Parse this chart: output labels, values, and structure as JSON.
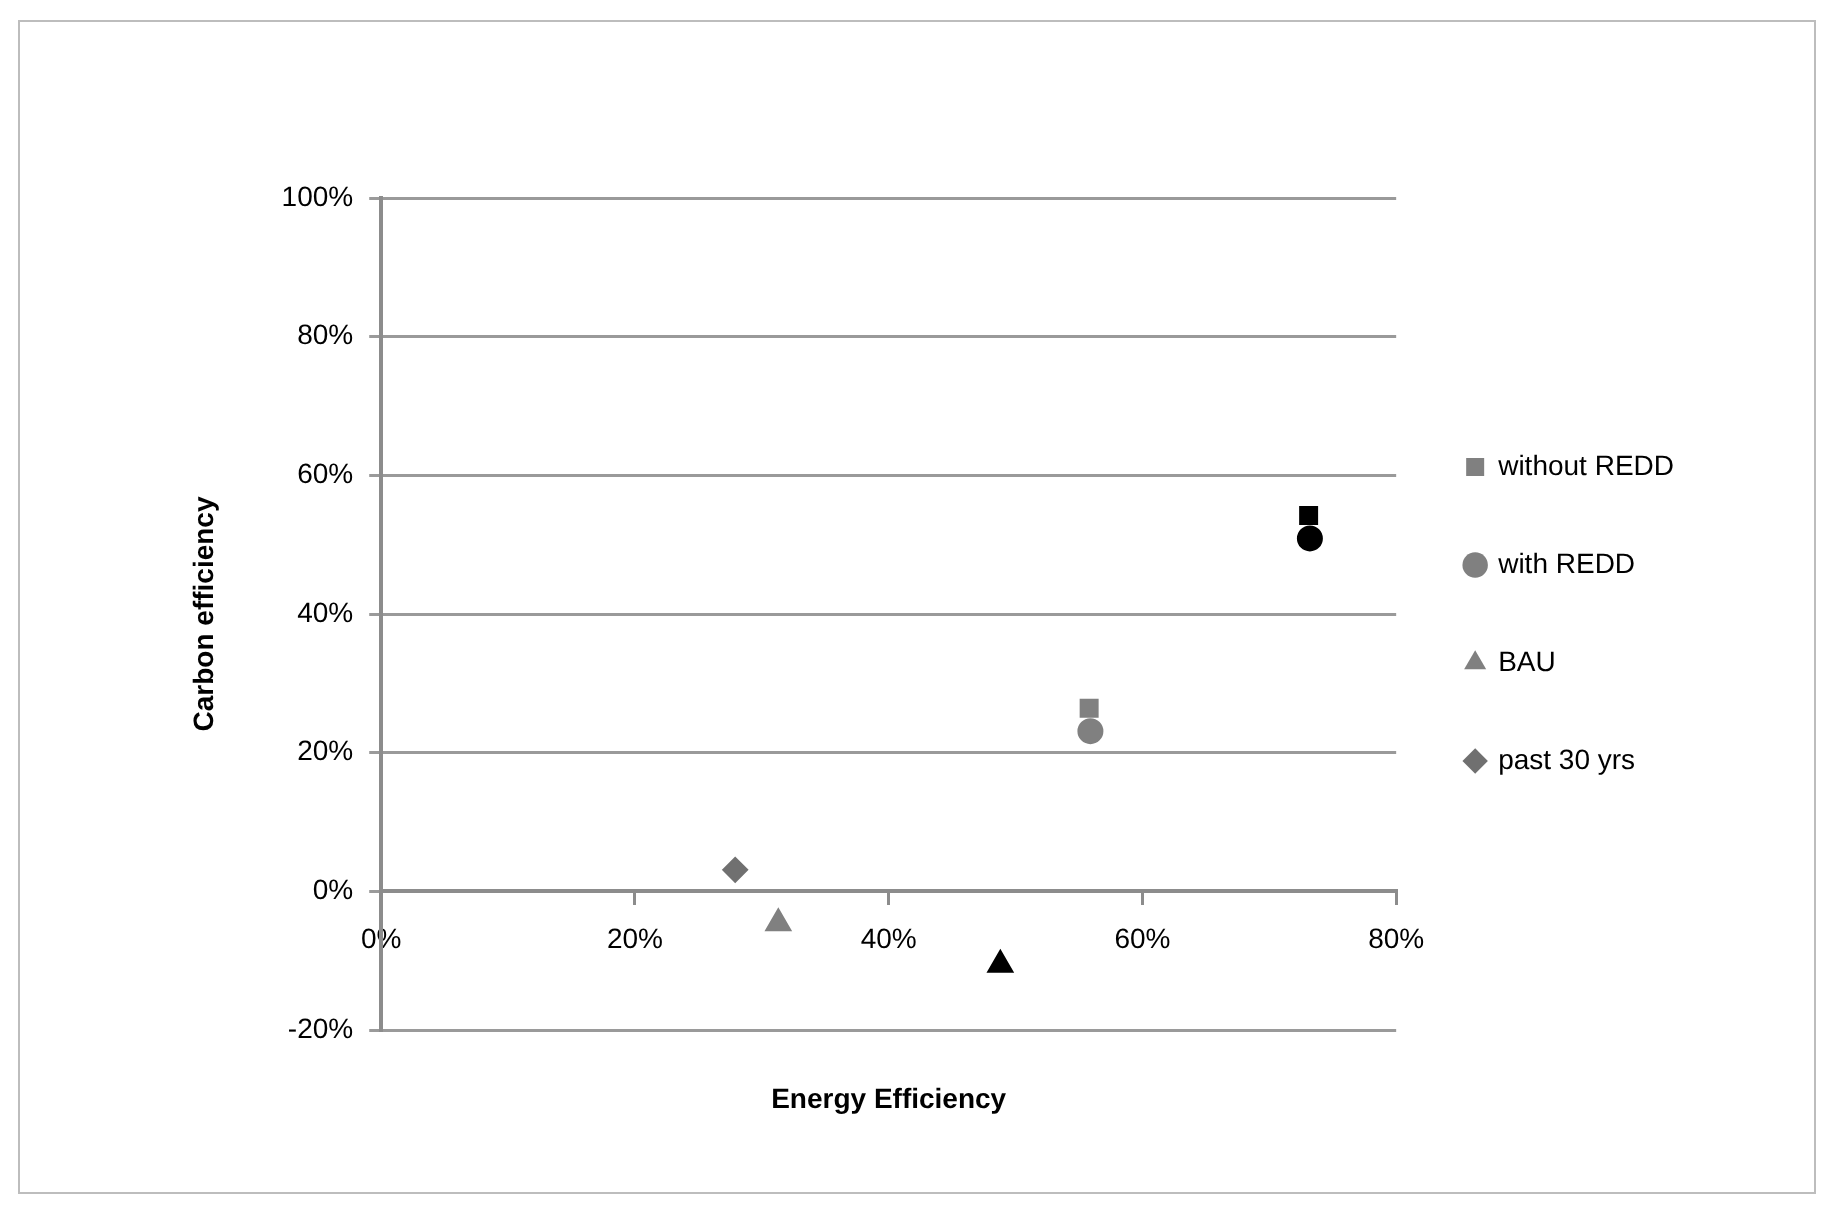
{
  "chart_data": {
    "type": "scatter",
    "xlabel": "Energy Efficiency",
    "ylabel": "Carbon efficiency",
    "xlim": [
      0,
      80
    ],
    "xticks": [
      {
        "value": 0,
        "label": "0%"
      },
      {
        "value": 20,
        "label": "20%"
      },
      {
        "value": 40,
        "label": "40%"
      },
      {
        "value": 60,
        "label": "60%"
      },
      {
        "value": 80,
        "label": "80%"
      }
    ],
    "ylim": [
      -20,
      100
    ],
    "yticks": [
      {
        "value": -20,
        "label": "-20%"
      },
      {
        "value": 0,
        "label": "0%"
      },
      {
        "value": 20,
        "label": "20%"
      },
      {
        "value": 40,
        "label": "40%"
      },
      {
        "value": 60,
        "label": "60%"
      },
      {
        "value": 80,
        "label": "80%"
      },
      {
        "value": 100,
        "label": "100%"
      }
    ],
    "grid": "y",
    "legend": "right",
    "series": [
      {
        "name": "without REDD",
        "marker": "square",
        "color": "#808080",
        "colors": [
          "#808080",
          "#000000"
        ],
        "x": [
          55.8,
          73.1
        ],
        "values": [
          26.4,
          54.2
        ]
      },
      {
        "name": "with REDD",
        "marker": "circle",
        "color": "#808080",
        "colors": [
          "#808080",
          "#000000"
        ],
        "x": [
          55.9,
          73.2
        ],
        "values": [
          23.1,
          50.9
        ]
      },
      {
        "name": "BAU",
        "marker": "triangle",
        "color": "#808080",
        "colors": [
          "#808080",
          "#000000"
        ],
        "x": [
          31.3,
          48.8
        ],
        "values": [
          -4.6,
          -10.6
        ]
      },
      {
        "name": "past 30 yrs",
        "marker": "diamond",
        "color": "#707070",
        "x": [
          27.9
        ],
        "values": [
          3.1
        ]
      }
    ]
  }
}
